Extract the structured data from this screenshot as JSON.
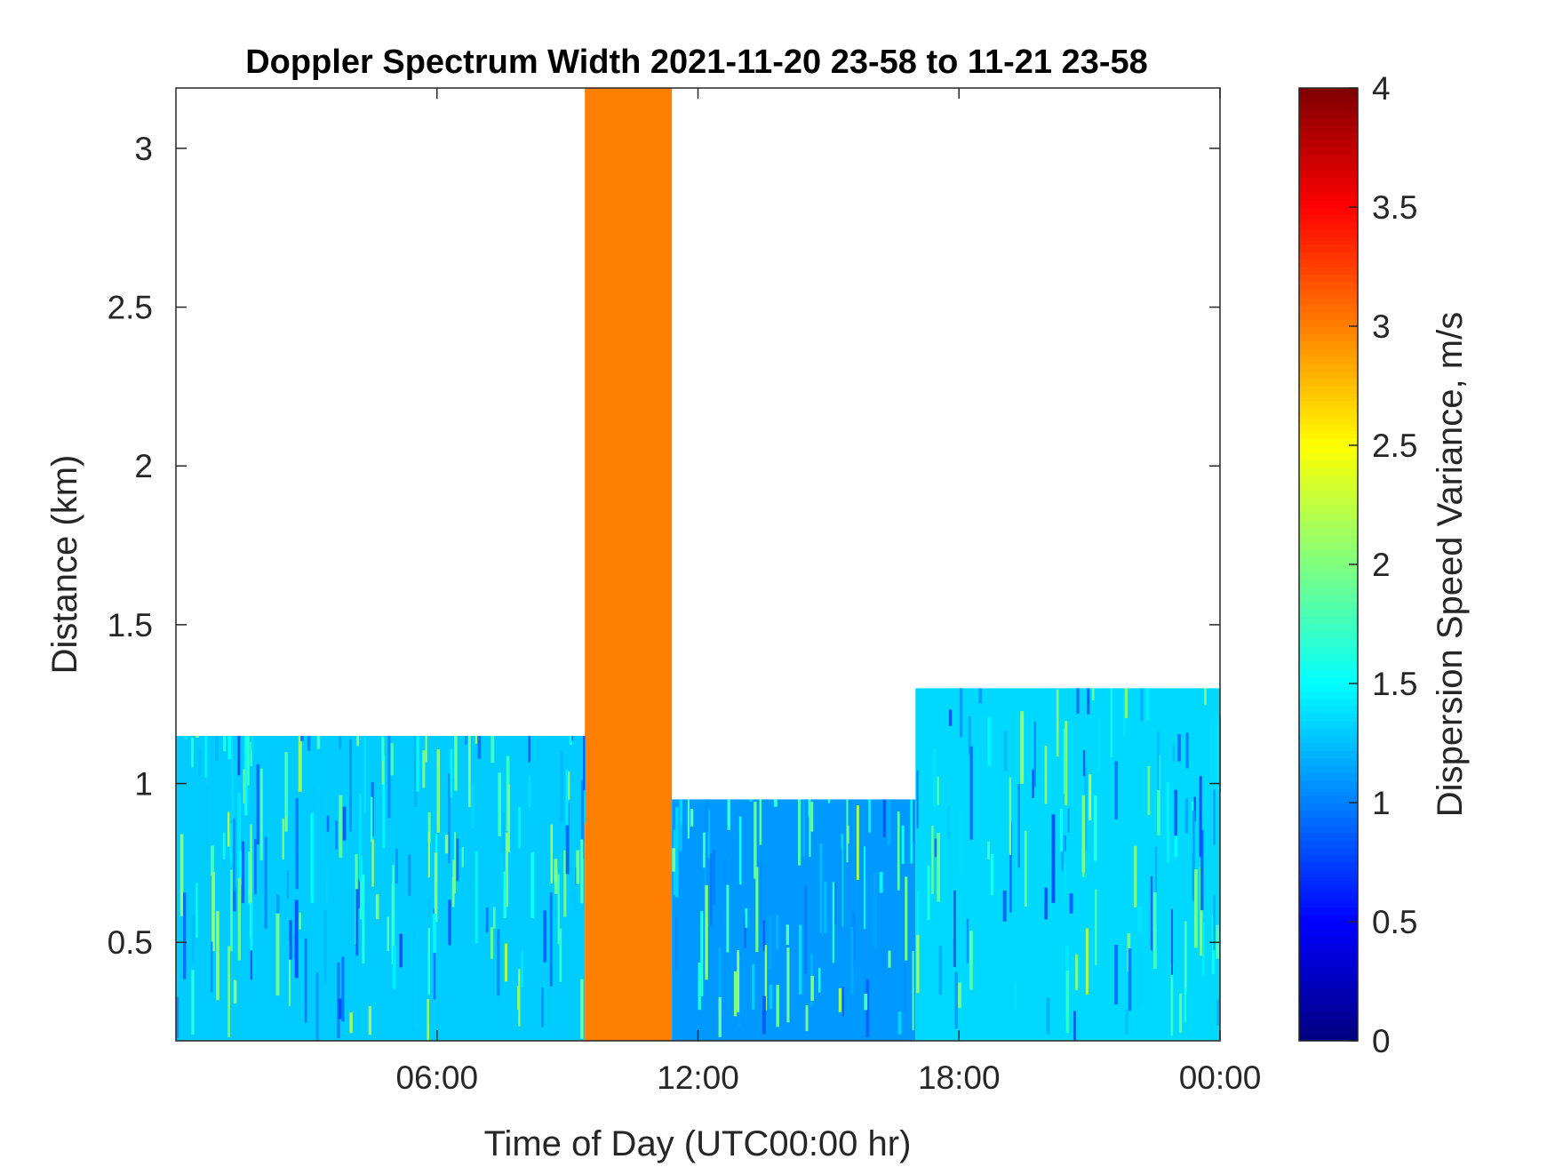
{
  "chart_data": {
    "type": "heatmap",
    "title": "Doppler Spectrum Width 2021-11-20 23-58 to 11-21 23-58",
    "xlabel": "Time of Day (UTC00:00 hr)",
    "ylabel": "Distance (km)",
    "colorbar_label": "Dispersion Speed Variance, m/s",
    "x_ticks": [
      "06:00",
      "12:00",
      "18:00",
      "00:00"
    ],
    "x_tick_hours": [
      6,
      12,
      18,
      24
    ],
    "xlim_hours": [
      0,
      24
    ],
    "y_ticks": [
      "0.5",
      "1",
      "1.5",
      "2",
      "2.5",
      "3"
    ],
    "y_tick_values": [
      0.5,
      1,
      1.5,
      2,
      2.5,
      3
    ],
    "ylim_km": [
      0.19,
      3.19
    ],
    "colorbar_ticks": [
      "0",
      "0.5",
      "1",
      "1.5",
      "2",
      "2.5",
      "3",
      "3.5",
      "4"
    ],
    "colorbar_tick_values": [
      0,
      0.5,
      1,
      1.5,
      2,
      2.5,
      3,
      3.5,
      4
    ],
    "clim": [
      0,
      4
    ],
    "colormap": "jet",
    "description_regions": [
      {
        "hours": [
          0,
          9.4
        ],
        "height_km": [
          0.19,
          1.15
        ],
        "value": 1.3
      },
      {
        "hours": [
          9.4,
          11.4
        ],
        "height_km": [
          0.19,
          3.19
        ],
        "value": 3.0
      },
      {
        "hours": [
          11.4,
          17.0
        ],
        "height_km": [
          0.19,
          0.95
        ],
        "value": 1.1
      },
      {
        "hours": [
          17.0,
          24
        ],
        "height_km": [
          0.19,
          1.3
        ],
        "value": 1.35
      }
    ],
    "colors": {
      "band": "#ff8c00",
      "low_layer": "#17c8ee",
      "missing": "#ffffff"
    }
  }
}
